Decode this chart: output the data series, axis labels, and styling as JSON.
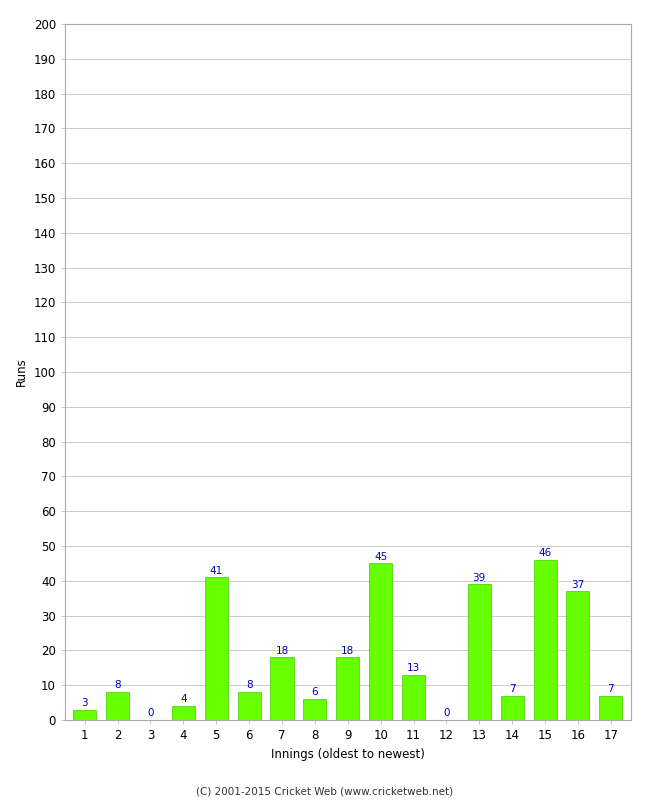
{
  "xlabel": "Innings (oldest to newest)",
  "ylabel": "Runs",
  "categories": [
    "1",
    "2",
    "3",
    "4",
    "5",
    "6",
    "7",
    "8",
    "9",
    "10",
    "11",
    "12",
    "13",
    "14",
    "15",
    "16",
    "17"
  ],
  "values": [
    3,
    8,
    0,
    4,
    41,
    8,
    18,
    6,
    18,
    45,
    13,
    0,
    39,
    7,
    46,
    37,
    7
  ],
  "bar_color": "#66ff00",
  "bar_edge_color": "#44cc00",
  "label_color": "#0000cc",
  "ylim": [
    0,
    200
  ],
  "yticks": [
    0,
    10,
    20,
    30,
    40,
    50,
    60,
    70,
    80,
    90,
    100,
    110,
    120,
    130,
    140,
    150,
    160,
    170,
    180,
    190,
    200
  ],
  "grid_color": "#cccccc",
  "background_color": "#ffffff",
  "footer": "(C) 2001-2015 Cricket Web (www.cricketweb.net)",
  "label_fontsize": 7.5,
  "axis_fontsize": 8.5,
  "footer_fontsize": 7.5,
  "border_color": "#aaaaaa"
}
